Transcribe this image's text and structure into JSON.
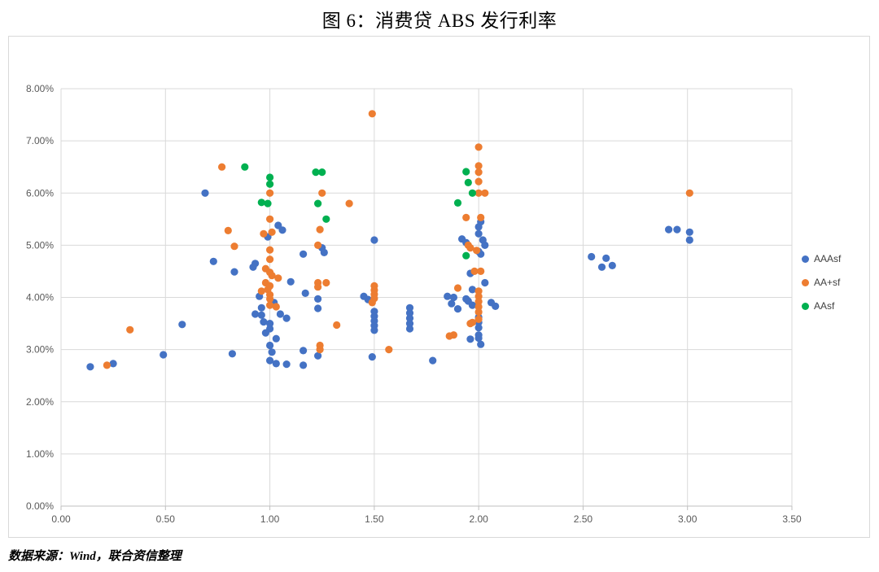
{
  "page": {
    "title": "图 6：消费贷 ABS 发行利率",
    "source_note": "数据来源：Wind，联合资信整理"
  },
  "legend": {
    "items": [
      {
        "label": "AAAsf",
        "color": "#4472C4"
      },
      {
        "label": "AA+sf",
        "color": "#ED7D31"
      },
      {
        "label": "AAsf",
        "color": "#00B050"
      }
    ]
  },
  "chart_data": {
    "type": "scatter",
    "title": "图 6：消费贷 ABS 发行利率",
    "xlabel": "",
    "ylabel": "",
    "xlim": [
      0,
      3.5
    ],
    "ylim": [
      0,
      8
    ],
    "x_ticks": [
      "0.00",
      "0.50",
      "1.00",
      "1.50",
      "2.00",
      "2.50",
      "3.00",
      "3.50"
    ],
    "y_ticks": [
      "0.00%",
      "1.00%",
      "2.00%",
      "3.00%",
      "4.00%",
      "5.00%",
      "6.00%",
      "7.00%",
      "8.00%"
    ],
    "grid": true,
    "legend_position": "right",
    "y_unit": "percent",
    "series": [
      {
        "name": "AAAsf",
        "color": "#4472C4",
        "points": [
          [
            0.14,
            2.67
          ],
          [
            0.25,
            2.73
          ],
          [
            0.49,
            2.9
          ],
          [
            0.58,
            3.48
          ],
          [
            0.69,
            6.0
          ],
          [
            0.73,
            4.69
          ],
          [
            0.82,
            2.92
          ],
          [
            0.83,
            4.49
          ],
          [
            0.92,
            4.58
          ],
          [
            0.93,
            4.65
          ],
          [
            0.99,
            5.16
          ],
          [
            1.04,
            5.38
          ],
          [
            1.06,
            5.29
          ],
          [
            0.95,
            4.02
          ],
          [
            1.02,
            3.9
          ],
          [
            0.96,
            3.8
          ],
          [
            0.93,
            3.68
          ],
          [
            0.96,
            3.66
          ],
          [
            1.05,
            3.68
          ],
          [
            1.08,
            3.6
          ],
          [
            0.97,
            3.53
          ],
          [
            1.0,
            3.5
          ],
          [
            1.0,
            3.4
          ],
          [
            0.98,
            3.32
          ],
          [
            1.03,
            3.21
          ],
          [
            1.0,
            3.08
          ],
          [
            1.01,
            2.95
          ],
          [
            1.0,
            2.79
          ],
          [
            1.03,
            2.73
          ],
          [
            1.08,
            2.72
          ],
          [
            1.1,
            4.3
          ],
          [
            1.16,
            4.83
          ],
          [
            1.17,
            4.08
          ],
          [
            1.16,
            2.98
          ],
          [
            1.16,
            2.7
          ],
          [
            1.23,
            3.97
          ],
          [
            1.23,
            3.79
          ],
          [
            1.23,
            2.88
          ],
          [
            1.25,
            4.95
          ],
          [
            1.26,
            4.86
          ],
          [
            1.45,
            4.02
          ],
          [
            1.47,
            3.96
          ],
          [
            1.5,
            5.1
          ],
          [
            1.5,
            3.73
          ],
          [
            1.5,
            3.64
          ],
          [
            1.5,
            3.55
          ],
          [
            1.5,
            3.46
          ],
          [
            1.5,
            3.37
          ],
          [
            1.49,
            2.86
          ],
          [
            1.67,
            3.8
          ],
          [
            1.67,
            3.7
          ],
          [
            1.67,
            3.6
          ],
          [
            1.67,
            3.5
          ],
          [
            1.67,
            3.4
          ],
          [
            1.78,
            2.79
          ],
          [
            1.85,
            4.02
          ],
          [
            1.88,
            4.0
          ],
          [
            1.87,
            3.88
          ],
          [
            1.9,
            3.78
          ],
          [
            1.94,
            3.97
          ],
          [
            1.95,
            3.93
          ],
          [
            1.97,
            3.85
          ],
          [
            1.92,
            5.12
          ],
          [
            1.94,
            5.05
          ],
          [
            1.96,
            4.46
          ],
          [
            1.97,
            4.15
          ],
          [
            2.03,
            4.28
          ],
          [
            2.01,
            5.45
          ],
          [
            2.0,
            5.35
          ],
          [
            2.0,
            5.22
          ],
          [
            2.02,
            5.1
          ],
          [
            2.03,
            5.0
          ],
          [
            2.0,
            4.88
          ],
          [
            2.01,
            4.83
          ],
          [
            2.06,
            3.9
          ],
          [
            2.08,
            3.83
          ],
          [
            2.0,
            3.62
          ],
          [
            2.0,
            3.52
          ],
          [
            2.0,
            3.42
          ],
          [
            2.0,
            3.28
          ],
          [
            2.0,
            3.22
          ],
          [
            1.96,
            3.2
          ],
          [
            2.01,
            3.1
          ],
          [
            2.54,
            4.78
          ],
          [
            2.61,
            4.75
          ],
          [
            2.59,
            4.58
          ],
          [
            2.64,
            4.61
          ],
          [
            2.91,
            5.3
          ],
          [
            2.95,
            5.3
          ],
          [
            3.01,
            5.25
          ],
          [
            3.01,
            5.1
          ]
        ]
      },
      {
        "name": "AA+sf",
        "color": "#ED7D31",
        "points": [
          [
            0.22,
            2.7
          ],
          [
            0.33,
            3.38
          ],
          [
            0.77,
            6.5
          ],
          [
            0.8,
            5.28
          ],
          [
            0.83,
            4.98
          ],
          [
            1.0,
            6.0
          ],
          [
            1.0,
            5.5
          ],
          [
            0.97,
            5.22
          ],
          [
            1.01,
            5.25
          ],
          [
            1.0,
            4.91
          ],
          [
            1.0,
            4.73
          ],
          [
            0.98,
            4.55
          ],
          [
            1.0,
            4.48
          ],
          [
            1.01,
            4.42
          ],
          [
            1.04,
            4.37
          ],
          [
            0.98,
            4.28
          ],
          [
            1.0,
            4.22
          ],
          [
            0.99,
            4.15
          ],
          [
            0.96,
            4.12
          ],
          [
            1.0,
            4.05
          ],
          [
            1.0,
            3.97
          ],
          [
            1.0,
            3.85
          ],
          [
            1.03,
            3.82
          ],
          [
            1.25,
            6.0
          ],
          [
            1.24,
            5.3
          ],
          [
            1.23,
            5.0
          ],
          [
            1.23,
            4.28
          ],
          [
            1.27,
            4.28
          ],
          [
            1.23,
            4.2
          ],
          [
            1.24,
            3.08
          ],
          [
            1.24,
            3.0
          ],
          [
            1.32,
            3.47
          ],
          [
            1.38,
            5.8
          ],
          [
            1.49,
            7.52
          ],
          [
            1.5,
            4.22
          ],
          [
            1.5,
            4.14
          ],
          [
            1.5,
            4.06
          ],
          [
            1.5,
            3.98
          ],
          [
            1.49,
            3.9
          ],
          [
            1.57,
            3.0
          ],
          [
            1.86,
            3.26
          ],
          [
            1.88,
            3.28
          ],
          [
            1.9,
            4.18
          ],
          [
            1.94,
            5.53
          ],
          [
            1.95,
            5.0
          ],
          [
            1.96,
            4.95
          ],
          [
            1.96,
            3.5
          ],
          [
            1.97,
            3.52
          ],
          [
            1.98,
            4.5
          ],
          [
            1.99,
            4.9
          ],
          [
            2.0,
            6.88
          ],
          [
            2.0,
            6.52
          ],
          [
            2.0,
            6.4
          ],
          [
            2.0,
            6.22
          ],
          [
            2.0,
            6.0
          ],
          [
            2.03,
            6.0
          ],
          [
            2.01,
            5.53
          ],
          [
            2.01,
            4.5
          ],
          [
            2.0,
            4.12
          ],
          [
            2.0,
            4.02
          ],
          [
            2.0,
            3.92
          ],
          [
            2.0,
            3.82
          ],
          [
            2.0,
            3.72
          ],
          [
            2.0,
            3.58
          ],
          [
            3.01,
            6.0
          ]
        ]
      },
      {
        "name": "AAsf",
        "color": "#00B050",
        "points": [
          [
            0.88,
            6.5
          ],
          [
            1.0,
            6.3
          ],
          [
            1.0,
            6.17
          ],
          [
            0.96,
            5.82
          ],
          [
            0.99,
            5.8
          ],
          [
            1.22,
            6.4
          ],
          [
            1.25,
            6.4
          ],
          [
            1.23,
            5.8
          ],
          [
            1.27,
            5.5
          ],
          [
            1.9,
            5.81
          ],
          [
            1.94,
            6.41
          ],
          [
            1.95,
            6.2
          ],
          [
            1.97,
            6.0
          ],
          [
            1.94,
            4.8
          ]
        ]
      }
    ]
  }
}
